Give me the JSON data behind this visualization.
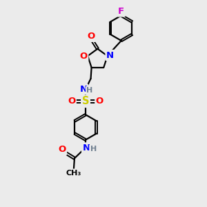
{
  "bg_color": "#ebebeb",
  "atom_colors": {
    "O": "#ff0000",
    "N": "#0000ff",
    "S": "#cccc00",
    "F": "#cc00cc",
    "H": "#708090",
    "C": "#000000"
  },
  "lw": 1.6,
  "fs": 9.5,
  "xlim": [
    0,
    10
  ],
  "ylim": [
    0,
    14
  ]
}
